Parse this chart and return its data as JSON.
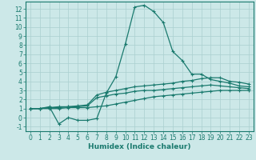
{
  "xlabel": "Humidex (Indice chaleur)",
  "bg_color": "#cce8e8",
  "line_color": "#1a7a6e",
  "grid_color": "#aacfcf",
  "xlim": [
    -0.5,
    23.5
  ],
  "ylim": [
    -1.5,
    12.8
  ],
  "xticks": [
    0,
    1,
    2,
    3,
    4,
    5,
    6,
    7,
    8,
    9,
    10,
    11,
    12,
    13,
    14,
    15,
    16,
    17,
    18,
    19,
    20,
    21,
    22,
    23
  ],
  "yticks": [
    -1,
    0,
    1,
    2,
    3,
    4,
    5,
    6,
    7,
    8,
    9,
    10,
    11,
    12
  ],
  "curve1_x": [
    0,
    1,
    2,
    3,
    4,
    5,
    6,
    7,
    8,
    9,
    10,
    11,
    12,
    13,
    14,
    15,
    16,
    17,
    18,
    19,
    20,
    21,
    22,
    23
  ],
  "curve1_y": [
    1.0,
    1.0,
    1.2,
    -0.7,
    0.0,
    -0.3,
    -0.3,
    -0.1,
    2.7,
    4.5,
    8.1,
    12.2,
    12.4,
    11.7,
    10.5,
    7.3,
    6.3,
    4.8,
    4.8,
    4.2,
    4.0,
    3.8,
    3.5,
    3.4
  ],
  "curve2_x": [
    0,
    1,
    2,
    3,
    4,
    5,
    6,
    7,
    8,
    9,
    10,
    11,
    12,
    13,
    14,
    15,
    16,
    17,
    18,
    19,
    20,
    21,
    22,
    23
  ],
  "curve2_y": [
    1.0,
    1.0,
    1.1,
    1.2,
    1.2,
    1.3,
    1.4,
    2.5,
    2.8,
    3.0,
    3.2,
    3.4,
    3.5,
    3.6,
    3.7,
    3.8,
    4.0,
    4.1,
    4.3,
    4.4,
    4.4,
    4.0,
    3.9,
    3.7
  ],
  "curve3_x": [
    0,
    1,
    2,
    3,
    4,
    5,
    6,
    7,
    8,
    9,
    10,
    11,
    12,
    13,
    14,
    15,
    16,
    17,
    18,
    19,
    20,
    21,
    22,
    23
  ],
  "curve3_y": [
    1.0,
    1.0,
    1.1,
    1.1,
    1.2,
    1.2,
    1.3,
    2.2,
    2.4,
    2.6,
    2.7,
    2.9,
    3.0,
    3.0,
    3.1,
    3.2,
    3.3,
    3.4,
    3.5,
    3.6,
    3.5,
    3.4,
    3.3,
    3.2
  ],
  "curve4_x": [
    0,
    1,
    2,
    3,
    4,
    5,
    6,
    7,
    8,
    9,
    10,
    11,
    12,
    13,
    14,
    15,
    16,
    17,
    18,
    19,
    20,
    21,
    22,
    23
  ],
  "curve4_y": [
    1.0,
    1.0,
    1.0,
    1.0,
    1.1,
    1.1,
    1.1,
    1.2,
    1.3,
    1.5,
    1.7,
    1.9,
    2.1,
    2.3,
    2.4,
    2.5,
    2.6,
    2.7,
    2.8,
    2.9,
    3.0,
    3.0,
    3.0,
    3.0
  ],
  "marker": "+",
  "marker_size": 3,
  "line_width": 0.9,
  "xlabel_fontsize": 6.5,
  "tick_fontsize": 5.5
}
